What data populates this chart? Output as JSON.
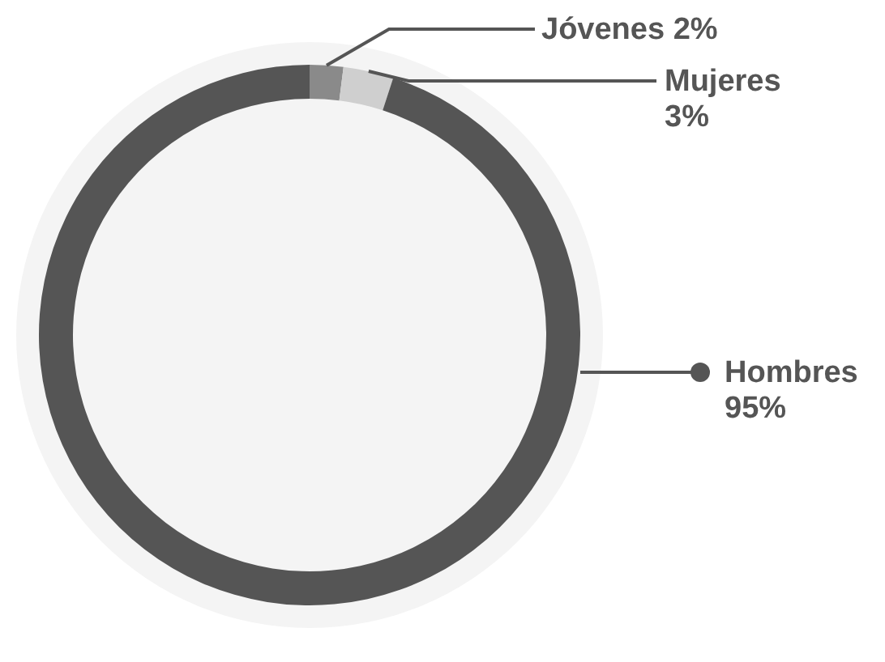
{
  "chart_data": {
    "type": "donut",
    "categories": [
      "Jóvenes",
      "Mujeres",
      "Hombres"
    ],
    "values": [
      2,
      3,
      95
    ],
    "colors": [
      "#8a8a8a",
      "#cfcfcf",
      "#555555"
    ],
    "value_labels": [
      "2%",
      "3%",
      "95%"
    ]
  }
}
